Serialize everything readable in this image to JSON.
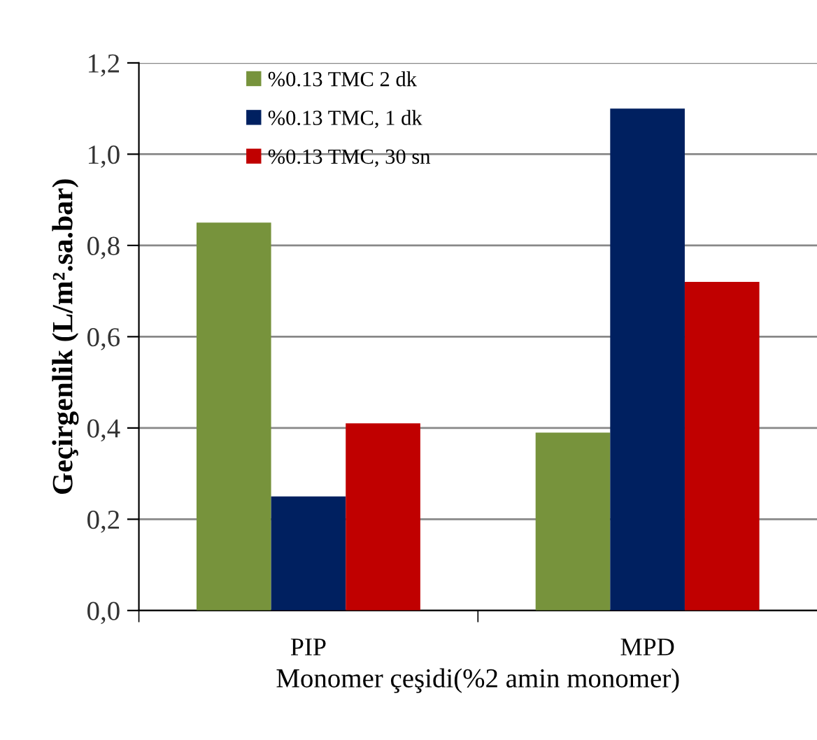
{
  "chart_data": {
    "type": "bar",
    "xlabel": "Monomer çeşidi(%2 amin monomer)",
    "ylabel": "Geçirgenlik (L/m².sa.bar)",
    "categories": [
      "PIP",
      "MPD"
    ],
    "series": [
      {
        "name": "%0.13 TMC 2 dk",
        "color": "#77933c",
        "values": [
          0.85,
          0.39
        ]
      },
      {
        "name": "%0.13 TMC, 1 dk",
        "color": "#002060",
        "values": [
          0.25,
          1.1
        ]
      },
      {
        "name": "%0.13 TMC, 30 sn",
        "color": "#c00000",
        "values": [
          0.41,
          0.72
        ]
      }
    ],
    "ylim": [
      0,
      1.2
    ],
    "yticks": [
      {
        "value": 0,
        "label": "0,0"
      },
      {
        "value": 0.2,
        "label": "0,2"
      },
      {
        "value": 0.4,
        "label": "0,4"
      },
      {
        "value": 0.6,
        "label": "0,6"
      },
      {
        "value": 0.8,
        "label": "0,8"
      },
      {
        "value": 1.0,
        "label": "1,0"
      },
      {
        "value": 1.2,
        "label": "1,2"
      }
    ],
    "grid": "y",
    "legend": "top left"
  }
}
